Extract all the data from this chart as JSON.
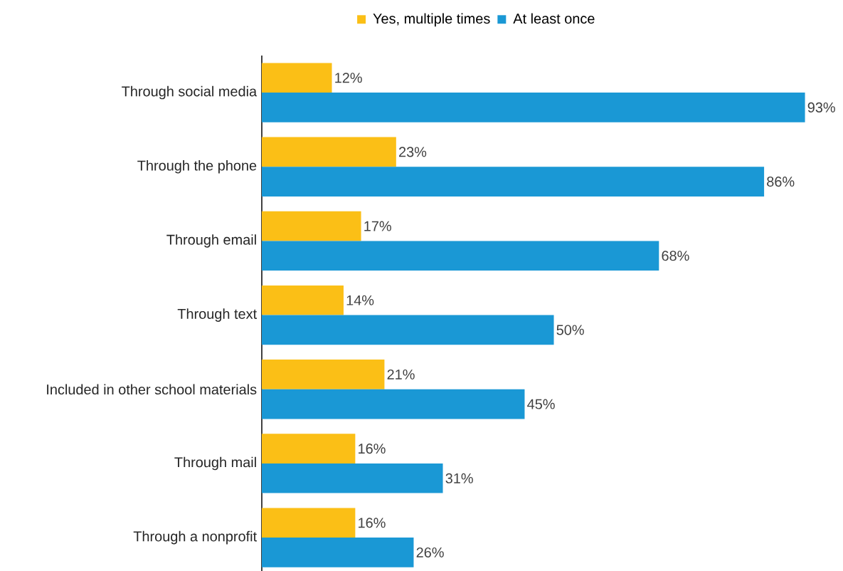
{
  "chart_data": {
    "type": "bar",
    "orientation": "horizontal",
    "legend": "top",
    "categories": [
      "Through social media",
      "Through the phone",
      "Through email",
      "Through text",
      "Included in other school materials",
      "Through mail",
      "Through a nonprofit"
    ],
    "series": [
      {
        "name": "Yes, multiple times",
        "color": "#fbbf16",
        "values": [
          12,
          23,
          17,
          14,
          21,
          16,
          16
        ],
        "value_labels": [
          "12%",
          "23%",
          "17%",
          "14%",
          "21%",
          "16%",
          "16%"
        ]
      },
      {
        "name": "At least once",
        "color": "#1a98d5",
        "values": [
          93,
          86,
          68,
          50,
          45,
          31,
          26
        ],
        "value_labels": [
          "93%",
          "86%",
          "68%",
          "50%",
          "45%",
          "31%",
          "26%"
        ]
      }
    ]
  }
}
